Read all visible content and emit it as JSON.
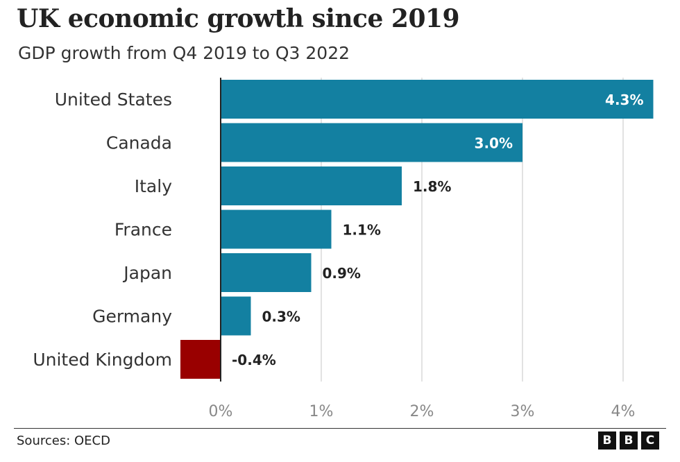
{
  "chart_data": {
    "type": "bar",
    "orientation": "horizontal",
    "title": "UK economic growth since 2019",
    "subtitle": "GDP growth from Q4 2019 to Q3 2022",
    "categories": [
      "United States",
      "Canada",
      "Italy",
      "France",
      "Japan",
      "Germany",
      "United Kingdom"
    ],
    "values": [
      4.3,
      3.0,
      1.8,
      1.1,
      0.9,
      0.3,
      -0.4
    ],
    "value_labels": [
      "4.3%",
      "3.0%",
      "1.8%",
      "1.1%",
      "0.9%",
      "0.3%",
      "-0.4%"
    ],
    "x_ticks": [
      0,
      1,
      2,
      3,
      4
    ],
    "x_tick_labels": [
      "0%",
      "1%",
      "2%",
      "3%",
      "4%"
    ],
    "xlim": [
      -0.4,
      4.3
    ],
    "xlabel": "",
    "ylabel": "",
    "grid": true,
    "colors": {
      "positive": "#1380a1",
      "negative": "#990000"
    }
  },
  "footer": {
    "source": "Sources: OECD",
    "logo_letters": [
      "B",
      "B",
      "C"
    ]
  }
}
